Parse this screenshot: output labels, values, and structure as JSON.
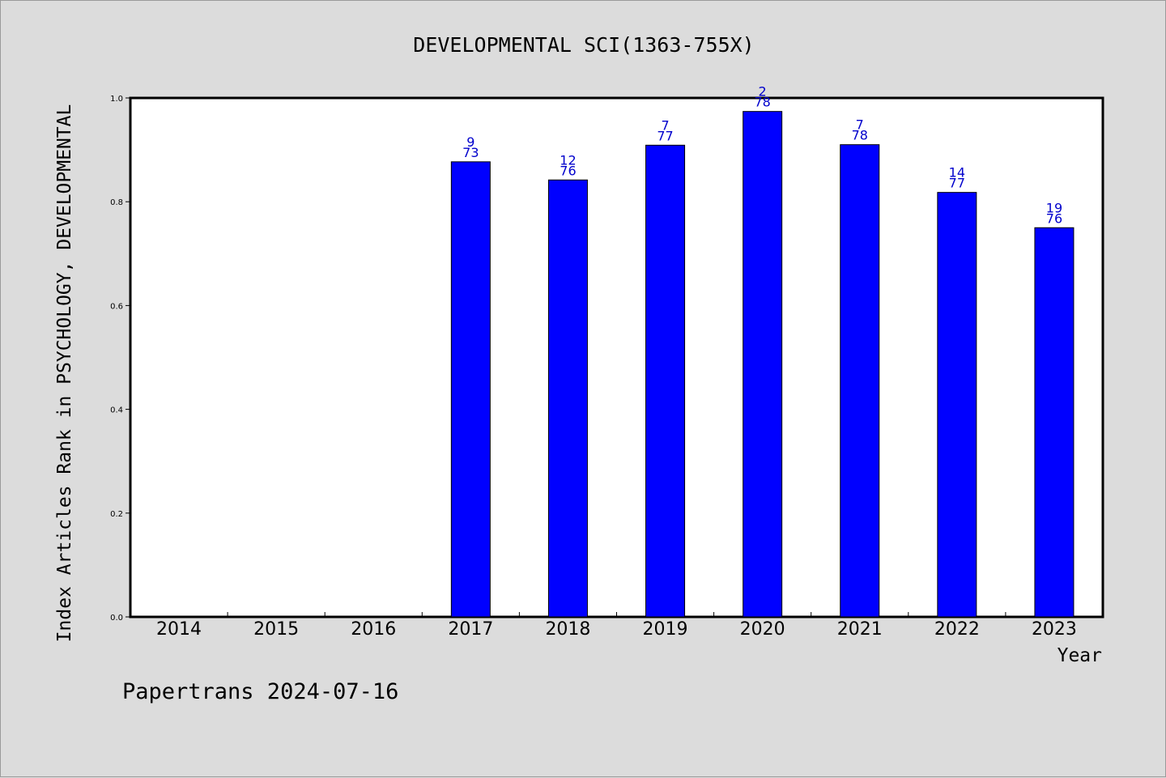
{
  "chart_data": {
    "type": "bar",
    "title": "DEVELOPMENTAL SCI(1363-755X)",
    "xlabel": "Year",
    "ylabel": "Index Articles Rank in PSYCHOLOGY, DEVELOPMENTAL",
    "ylim": [
      0,
      1.0
    ],
    "yticks": [
      "0.0",
      "0.2",
      "0.4",
      "0.6",
      "0.8",
      "1.0"
    ],
    "categories": [
      "2014",
      "2015",
      "2016",
      "2017",
      "2018",
      "2019",
      "2020",
      "2021",
      "2022",
      "2023"
    ],
    "values": [
      null,
      null,
      null,
      0.877,
      0.842,
      0.909,
      0.974,
      0.91,
      0.818,
      0.75
    ],
    "bar_labels": [
      null,
      null,
      null,
      {
        "rank": "9",
        "total": "73"
      },
      {
        "rank": "12",
        "total": "76"
      },
      {
        "rank": "7",
        "total": "77"
      },
      {
        "rank": "2",
        "total": "78"
      },
      {
        "rank": "7",
        "total": "78"
      },
      {
        "rank": "14",
        "total": "77"
      },
      {
        "rank": "19",
        "total": "76"
      }
    ],
    "grid": false,
    "colors": {
      "bar": "#0000ff",
      "bar_label": "#0000cc",
      "plot_background": "#ffffff",
      "page_background": "#dcdcdc"
    }
  },
  "footer": "Papertrans 2024-07-16"
}
